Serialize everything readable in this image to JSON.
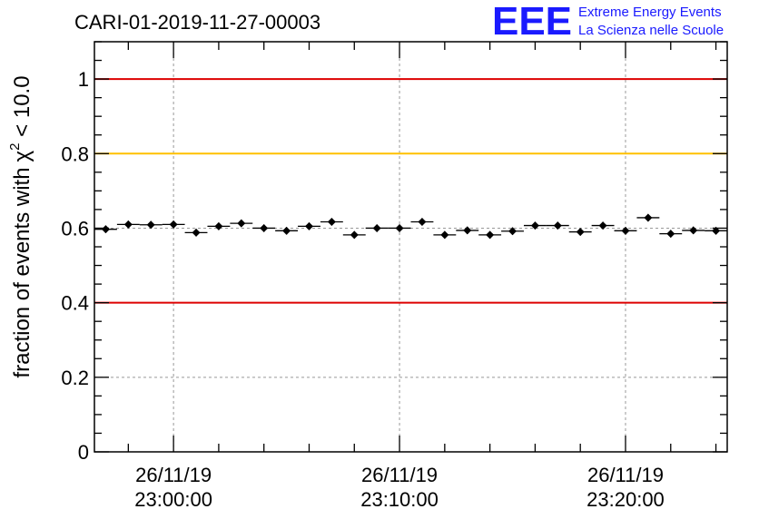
{
  "chart_data": {
    "type": "scatter",
    "title": "CARI-01-2019-11-27-00003",
    "xlabel": "",
    "ylabel": "fraction of events with",
    "ylabel_symbol": "χ",
    "ylabel_superscript": "2",
    "ylabel_suffix": " < 10.0",
    "ylim": [
      0,
      1.1
    ],
    "y_ticks": [
      {
        "value": 0,
        "label": "0"
      },
      {
        "value": 0.2,
        "label": "0.2"
      },
      {
        "value": 0.4,
        "label": "0.4"
      },
      {
        "value": 0.6,
        "label": "0.6"
      },
      {
        "value": 0.8,
        "label": "0.8"
      },
      {
        "value": 1.0,
        "label": "1"
      }
    ],
    "x_range_minutes": [
      -3.5,
      24.5
    ],
    "x_major_ticks": [
      {
        "minute": 0,
        "date": "26/11/19",
        "time": "23:00:00"
      },
      {
        "minute": 10,
        "date": "26/11/19",
        "time": "23:10:00"
      },
      {
        "minute": 20,
        "date": "26/11/19",
        "time": "23:20:00"
      }
    ],
    "reference_lines": [
      {
        "value": 1.0,
        "color": "#dd0000"
      },
      {
        "value": 0.8,
        "color": "#ffc000"
      },
      {
        "value": 0.4,
        "color": "#dd0000"
      }
    ],
    "grid": true,
    "bin_half_width_minutes": 0.5,
    "points": [
      {
        "x": -3,
        "y": 0.597
      },
      {
        "x": -2,
        "y": 0.61
      },
      {
        "x": -1,
        "y": 0.609
      },
      {
        "x": 0,
        "y": 0.61
      },
      {
        "x": 1,
        "y": 0.588
      },
      {
        "x": 2,
        "y": 0.605
      },
      {
        "x": 3,
        "y": 0.613
      },
      {
        "x": 4,
        "y": 0.6
      },
      {
        "x": 5,
        "y": 0.593
      },
      {
        "x": 6,
        "y": 0.605
      },
      {
        "x": 7,
        "y": 0.617
      },
      {
        "x": 8,
        "y": 0.582
      },
      {
        "x": 9,
        "y": 0.6
      },
      {
        "x": 10,
        "y": 0.6
      },
      {
        "x": 11,
        "y": 0.617
      },
      {
        "x": 12,
        "y": 0.582
      },
      {
        "x": 13,
        "y": 0.594
      },
      {
        "x": 14,
        "y": 0.582
      },
      {
        "x": 15,
        "y": 0.592
      },
      {
        "x": 16,
        "y": 0.607
      },
      {
        "x": 17,
        "y": 0.607
      },
      {
        "x": 18,
        "y": 0.59
      },
      {
        "x": 19,
        "y": 0.607
      },
      {
        "x": 20,
        "y": 0.593
      },
      {
        "x": 21,
        "y": 0.628
      },
      {
        "x": 22,
        "y": 0.585
      },
      {
        "x": 23,
        "y": 0.594
      },
      {
        "x": 24,
        "y": 0.593
      }
    ]
  },
  "logo": {
    "mark": "EEE",
    "line1": "Extreme Energy Events",
    "line2": "La Scienza nelle Scuole",
    "color": "#1a1aff"
  }
}
